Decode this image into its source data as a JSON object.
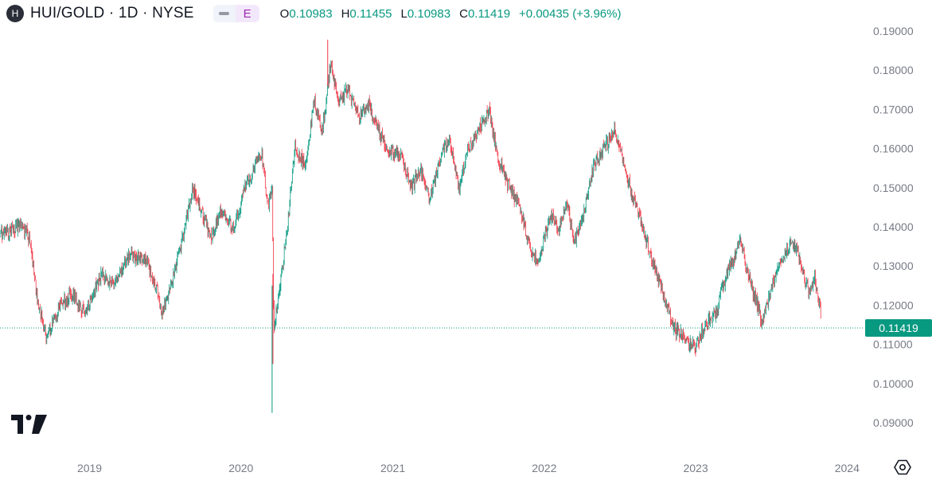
{
  "header": {
    "symbol_badge": "H",
    "title": "HUI/GOLD · 1D · NYSE",
    "toggle_icon": "line-minus-icon",
    "badge_e": "E",
    "ohlc": {
      "o_label": "O",
      "o_value": "0.10983",
      "h_label": "H",
      "h_value": "0.11455",
      "l_label": "L",
      "l_value": "0.10983",
      "c_label": "C",
      "c_value": "0.11419",
      "change": "+0.00435 (+3.96%)"
    }
  },
  "colors": {
    "up": "#089981",
    "down": "#f23645",
    "price_line": "#089981",
    "axis_text": "#787b86"
  },
  "icons": {
    "logo": "tradingview-logo",
    "settings": "settings-gear-icon"
  },
  "chart_data": {
    "type": "candlestick",
    "title": "HUI/GOLD · 1D · NYSE",
    "x_tick_labels": [
      "2019",
      "2020",
      "2021",
      "2022",
      "2023",
      "2024"
    ],
    "y_tick_labels": [
      "0.19000",
      "0.18000",
      "0.17000",
      "0.16000",
      "0.15000",
      "0.14000",
      "0.13000",
      "0.12000",
      "0.11000",
      "0.10000",
      "0.09000"
    ],
    "ylim": [
      0.0865,
      0.1935
    ],
    "grid": false,
    "last_price": 0.11419,
    "last_price_label": "0.11419",
    "series": {
      "x": [
        "2018-06-01",
        "2018-06-25",
        "2018-07-20",
        "2018-08-10",
        "2018-08-30",
        "2018-09-20",
        "2018-10-20",
        "2018-11-20",
        "2018-12-20",
        "2019-01-30",
        "2019-03-01",
        "2019-04-10",
        "2019-04-25",
        "2019-05-15",
        "2019-06-10",
        "2019-06-25",
        "2019-07-20",
        "2019-08-15",
        "2019-09-05",
        "2019-09-25",
        "2019-10-20",
        "2019-11-15",
        "2019-12-15",
        "2020-01-10",
        "2020-02-20",
        "2020-03-05",
        "2020-03-16",
        "2020-03-20",
        "2020-04-05",
        "2020-04-20",
        "2020-05-10",
        "2020-06-05",
        "2020-06-25",
        "2020-07-15",
        "2020-08-05",
        "2020-08-20",
        "2020-09-15",
        "2020-10-10",
        "2020-11-05",
        "2020-11-25",
        "2020-12-20",
        "2021-01-20",
        "2021-02-15",
        "2021-03-10",
        "2021-03-30",
        "2021-04-20",
        "2021-05-15",
        "2021-06-10",
        "2021-06-30",
        "2021-07-25",
        "2021-08-20",
        "2021-09-15",
        "2021-10-10",
        "2021-11-05",
        "2021-11-30",
        "2021-12-20",
        "2022-01-15",
        "2022-02-05",
        "2022-02-25",
        "2022-03-15",
        "2022-04-05",
        "2022-05-01",
        "2022-05-25",
        "2022-06-20",
        "2022-07-15",
        "2022-08-10",
        "2022-09-01",
        "2022-09-25",
        "2022-10-20",
        "2022-11-10",
        "2022-12-05",
        "2023-01-01",
        "2023-01-25",
        "2023-02-20",
        "2023-03-10",
        "2023-03-30",
        "2023-04-20",
        "2023-05-15",
        "2023-06-10",
        "2023-07-05",
        "2023-07-30",
        "2023-08-20",
        "2023-09-10",
        "2023-09-30",
        "2023-10-15",
        "2023-10-31"
      ],
      "close": [
        0.1382,
        0.139,
        0.1405,
        0.137,
        0.12,
        0.1118,
        0.12,
        0.123,
        0.118,
        0.128,
        0.125,
        0.1335,
        0.132,
        0.132,
        0.125,
        0.1175,
        0.127,
        0.138,
        0.1495,
        0.145,
        0.137,
        0.144,
        0.1395,
        0.15,
        0.159,
        0.145,
        0.149,
        0.114,
        0.126,
        0.138,
        0.16,
        0.155,
        0.172,
        0.165,
        0.182,
        0.172,
        0.175,
        0.168,
        0.171,
        0.165,
        0.16,
        0.158,
        0.15,
        0.155,
        0.147,
        0.155,
        0.163,
        0.15,
        0.16,
        0.164,
        0.17,
        0.156,
        0.15,
        0.144,
        0.134,
        0.131,
        0.143,
        0.14,
        0.146,
        0.136,
        0.143,
        0.156,
        0.16,
        0.165,
        0.154,
        0.145,
        0.138,
        0.129,
        0.121,
        0.114,
        0.112,
        0.109,
        0.115,
        0.118,
        0.126,
        0.131,
        0.136,
        0.125,
        0.116,
        0.125,
        0.132,
        0.136,
        0.132,
        0.123,
        0.127,
        0.117
      ]
    }
  }
}
